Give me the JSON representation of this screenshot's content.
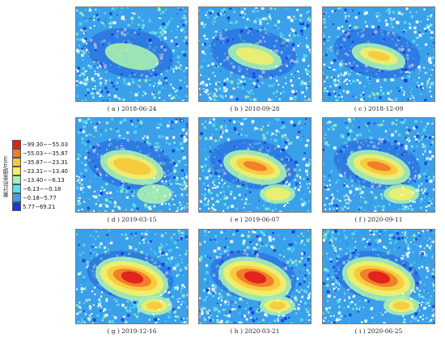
{
  "legend": {
    "title": "累计形变值/mm",
    "entries": [
      {
        "label": "−99.30−−55.03",
        "color": "#e0201a"
      },
      {
        "label": "−55.03−−35.87",
        "color": "#f07a2a"
      },
      {
        "label": "−35.87−−23.31",
        "color": "#f8c83a"
      },
      {
        "label": "−23.31−−13.40",
        "color": "#f2ee6a"
      },
      {
        "label": "−13.40−−6.13",
        "color": "#a8f0b0"
      },
      {
        "label": "−6.13−−0.18",
        "color": "#58e0f0"
      },
      {
        "label": "−0.18−5.77",
        "color": "#3aa0ea"
      },
      {
        "label": "5.77−69.21",
        "color": "#1838d8"
      }
    ]
  },
  "panels": [
    {
      "caption": "( a ) 2018-06-24",
      "stage": 0
    },
    {
      "caption": "( b ) 2018-09-28",
      "stage": 1
    },
    {
      "caption": "( c ) 2018-12-09",
      "stage": 2
    },
    {
      "caption": "( d ) 2019-03-15",
      "stage": 3
    },
    {
      "caption": "( e ) 2019-06-07",
      "stage": 4
    },
    {
      "caption": "( f ) 2020-09-11",
      "stage": 5
    },
    {
      "caption": "( g ) 2019-12-16",
      "stage": 6
    },
    {
      "caption": "( h ) 2020-03-21",
      "stage": 7
    },
    {
      "caption": "( i ) 2020-06-25",
      "stage": 8
    }
  ]
}
